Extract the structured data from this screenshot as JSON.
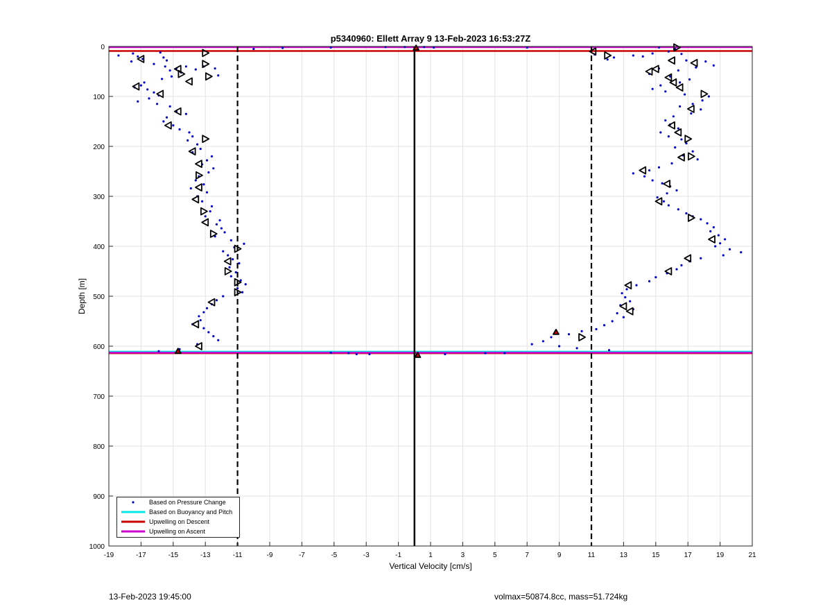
{
  "chart_data": {
    "type": "scatter",
    "title": "p5340960: Ellett Array 9 13-Feb-2023 16:53:27Z",
    "xlabel": "Vertical Velocity [cm/s]",
    "ylabel": "Depth [m]",
    "xlim": [
      -19,
      21
    ],
    "ylim": [
      0,
      1000
    ],
    "y_reversed": true,
    "grid": true,
    "xticks": [
      -19,
      -17,
      -15,
      -13,
      -11,
      -9,
      -7,
      -5,
      -3,
      -1,
      1,
      3,
      5,
      7,
      9,
      11,
      13,
      15,
      17,
      19,
      21
    ],
    "yticks": [
      0,
      100,
      200,
      300,
      400,
      500,
      600,
      700,
      800,
      900,
      1000
    ],
    "legend_position": "bottom-left",
    "legend": [
      {
        "label": "Based on Pressure Change",
        "color": "#0000cc",
        "kind": "dot"
      },
      {
        "label": "Based on Buoyancy and Pitch",
        "color": "#00e5e5",
        "kind": "line"
      },
      {
        "label": "Upwelling on Descent",
        "color": "#cc0000",
        "kind": "line"
      },
      {
        "label": "Upwelling on Ascent",
        "color": "#cc00cc",
        "kind": "line"
      }
    ],
    "reference_lines": [
      {
        "x": 0,
        "style": "solid",
        "color": "#000000"
      },
      {
        "x": -11,
        "style": "dashed",
        "color": "#000000"
      },
      {
        "x": 11,
        "style": "dashed",
        "color": "#000000"
      }
    ],
    "series": [
      {
        "name": "Based on Pressure Change",
        "descent_points": [
          [
            -18.4,
            18
          ],
          [
            -17.5,
            14
          ],
          [
            -17.2,
            20
          ],
          [
            -16.9,
            25
          ],
          [
            -17.6,
            30
          ],
          [
            -15.8,
            12
          ],
          [
            -15.6,
            22
          ],
          [
            -15.4,
            28
          ],
          [
            -16.2,
            35
          ],
          [
            -15.5,
            40
          ],
          [
            -15.2,
            48
          ],
          [
            -14.8,
            44
          ],
          [
            -14.2,
            40
          ],
          [
            -13.6,
            46
          ],
          [
            -13.1,
            40
          ],
          [
            -12.4,
            44
          ],
          [
            -12.2,
            58
          ],
          [
            -14.5,
            52
          ],
          [
            -15.1,
            60
          ],
          [
            -15.7,
            65
          ],
          [
            -16.8,
            72
          ],
          [
            -17.0,
            78
          ],
          [
            -17.4,
            82
          ],
          [
            -16.6,
            86
          ],
          [
            -16.2,
            92
          ],
          [
            -15.9,
            98
          ],
          [
            -16.5,
            104
          ],
          [
            -17.2,
            110
          ],
          [
            -16.0,
            115
          ],
          [
            -15.2,
            120
          ],
          [
            -14.8,
            130
          ],
          [
            -14.2,
            135
          ],
          [
            -15.4,
            142
          ],
          [
            -15.6,
            150
          ],
          [
            -15.0,
            158
          ],
          [
            -14.6,
            166
          ],
          [
            -14.0,
            172
          ],
          [
            -13.8,
            180
          ],
          [
            -14.1,
            188
          ],
          [
            -13.5,
            196
          ],
          [
            -13.3,
            205
          ],
          [
            -13.8,
            212
          ],
          [
            -12.6,
            220
          ],
          [
            -12.9,
            228
          ],
          [
            -13.2,
            236
          ],
          [
            -12.5,
            244
          ],
          [
            -12.8,
            252
          ],
          [
            -13.4,
            260
          ],
          [
            -13.6,
            268
          ],
          [
            -13.1,
            276
          ],
          [
            -13.9,
            284
          ],
          [
            -12.9,
            292
          ],
          [
            -13.5,
            300
          ],
          [
            -13.2,
            310
          ],
          [
            -12.6,
            320
          ],
          [
            -12.7,
            330
          ],
          [
            -13.0,
            340
          ],
          [
            -12.1,
            348
          ],
          [
            -12.3,
            356
          ],
          [
            -12.0,
            364
          ],
          [
            -11.8,
            372
          ],
          [
            -12.4,
            380
          ],
          [
            -11.4,
            388
          ],
          [
            -10.6,
            395
          ],
          [
            -11.2,
            402
          ],
          [
            -11.9,
            410
          ],
          [
            -11.6,
            418
          ],
          [
            -11.3,
            426
          ],
          [
            -10.9,
            434
          ],
          [
            -11.5,
            442
          ],
          [
            -11.1,
            452
          ],
          [
            -11.4,
            460
          ],
          [
            -10.8,
            468
          ],
          [
            -10.5,
            476
          ],
          [
            -11.0,
            484
          ],
          [
            -10.7,
            492
          ],
          [
            -11.9,
            500
          ],
          [
            -12.3,
            508
          ],
          [
            -12.6,
            516
          ],
          [
            -12.9,
            524
          ],
          [
            -13.1,
            532
          ],
          [
            -13.4,
            540
          ],
          [
            -13.3,
            548
          ],
          [
            -13.8,
            556
          ],
          [
            -13.1,
            564
          ],
          [
            -12.8,
            572
          ],
          [
            -12.5,
            580
          ],
          [
            -12.2,
            588
          ],
          [
            -13.5,
            596
          ],
          [
            -14.6,
            606
          ],
          [
            -15.9,
            610
          ],
          [
            -8.2,
            3
          ],
          [
            -10.0,
            5
          ],
          [
            -5.2,
            2
          ],
          [
            -1.8,
            1
          ],
          [
            -0.6,
            1
          ]
        ],
        "ascent_points": [
          [
            15.2,
            2
          ],
          [
            16.2,
            5
          ],
          [
            15.8,
            10
          ],
          [
            16.6,
            15
          ],
          [
            14.8,
            14
          ],
          [
            14.2,
            20
          ],
          [
            13.6,
            18
          ],
          [
            12.4,
            22
          ],
          [
            12.0,
            26
          ],
          [
            11.2,
            16
          ],
          [
            16.9,
            28
          ],
          [
            18.1,
            30
          ],
          [
            18.6,
            38
          ],
          [
            17.5,
            42
          ],
          [
            16.4,
            48
          ],
          [
            15.2,
            44
          ],
          [
            14.6,
            55
          ],
          [
            15.9,
            60
          ],
          [
            17.1,
            66
          ],
          [
            16.5,
            72
          ],
          [
            15.3,
            78
          ],
          [
            14.8,
            85
          ],
          [
            15.6,
            90
          ],
          [
            16.8,
            96
          ],
          [
            18.3,
            100
          ],
          [
            17.9,
            108
          ],
          [
            17.3,
            115
          ],
          [
            16.5,
            120
          ],
          [
            17.8,
            126
          ],
          [
            17.2,
            134
          ],
          [
            16.1,
            140
          ],
          [
            15.6,
            148
          ],
          [
            15.9,
            156
          ],
          [
            16.4,
            164
          ],
          [
            15.3,
            172
          ],
          [
            15.8,
            180
          ],
          [
            16.6,
            186
          ],
          [
            16.9,
            194
          ],
          [
            16.2,
            202
          ],
          [
            17.3,
            210
          ],
          [
            16.7,
            218
          ],
          [
            17.6,
            226
          ],
          [
            16.0,
            234
          ],
          [
            15.2,
            242
          ],
          [
            14.6,
            248
          ],
          [
            13.6,
            254
          ],
          [
            14.3,
            260
          ],
          [
            14.8,
            268
          ],
          [
            15.4,
            274
          ],
          [
            15.9,
            280
          ],
          [
            16.3,
            288
          ],
          [
            15.7,
            294
          ],
          [
            15.1,
            302
          ],
          [
            15.5,
            310
          ],
          [
            15.8,
            318
          ],
          [
            16.4,
            326
          ],
          [
            16.9,
            334
          ],
          [
            17.3,
            340
          ],
          [
            17.8,
            346
          ],
          [
            18.2,
            354
          ],
          [
            18.6,
            362
          ],
          [
            18.4,
            370
          ],
          [
            18.9,
            378
          ],
          [
            19.3,
            386
          ],
          [
            19.0,
            394
          ],
          [
            18.7,
            400
          ],
          [
            19.6,
            406
          ],
          [
            20.3,
            412
          ],
          [
            19.2,
            418
          ],
          [
            17.8,
            424
          ],
          [
            17.1,
            430
          ],
          [
            16.6,
            438
          ],
          [
            16.3,
            446
          ],
          [
            15.7,
            454
          ],
          [
            15.0,
            462
          ],
          [
            14.6,
            470
          ],
          [
            13.8,
            478
          ],
          [
            13.2,
            486
          ],
          [
            12.9,
            494
          ],
          [
            13.1,
            502
          ],
          [
            13.4,
            510
          ],
          [
            12.8,
            518
          ],
          [
            13.6,
            526
          ],
          [
            12.6,
            534
          ],
          [
            13.0,
            542
          ],
          [
            12.3,
            550
          ],
          [
            11.8,
            558
          ],
          [
            11.3,
            566
          ],
          [
            10.4,
            570
          ],
          [
            9.6,
            576
          ],
          [
            8.5,
            582
          ],
          [
            8.0,
            590
          ],
          [
            7.3,
            596
          ],
          [
            9.0,
            600
          ],
          [
            10.1,
            604
          ],
          [
            12.1,
            608
          ],
          [
            1.2,
            2
          ],
          [
            0.6,
            1
          ],
          [
            7.0,
            2
          ],
          [
            4.4,
            614
          ],
          [
            5.6,
            614
          ],
          [
            1.9,
            616
          ],
          [
            -3.6,
            616
          ],
          [
            -2.8,
            616
          ],
          [
            -4.1,
            614
          ],
          [
            -5.2,
            613
          ]
        ]
      },
      {
        "name": "Based on Buoyancy and Pitch",
        "lines": [
          {
            "depth": 611
          }
        ]
      },
      {
        "name": "Upwelling on Descent",
        "lines": [
          {
            "depth": 9
          },
          {
            "depth": 614
          }
        ]
      },
      {
        "name": "Upwelling on Ascent",
        "lines": [
          {
            "depth": 0
          },
          {
            "depth": 613
          }
        ]
      }
    ],
    "triangle_markers": [
      [
        -17.0,
        25,
        "left"
      ],
      [
        -13.0,
        13,
        "right"
      ],
      [
        -13.0,
        35,
        "right"
      ],
      [
        -14.7,
        45,
        "left"
      ],
      [
        -14.5,
        55,
        "right"
      ],
      [
        -12.8,
        60,
        "right"
      ],
      [
        -14.0,
        70,
        "left"
      ],
      [
        -17.3,
        80,
        "left"
      ],
      [
        -15.8,
        95,
        "left"
      ],
      [
        -14.7,
        130,
        "left"
      ],
      [
        -15.3,
        158,
        "left"
      ],
      [
        -13.0,
        185,
        "right"
      ],
      [
        -13.8,
        210,
        "left"
      ],
      [
        -13.4,
        235,
        "left"
      ],
      [
        -13.4,
        258,
        "right"
      ],
      [
        -13.4,
        282,
        "left"
      ],
      [
        -13.6,
        306,
        "left"
      ],
      [
        -13.1,
        330,
        "right"
      ],
      [
        -13.0,
        352,
        "left"
      ],
      [
        -12.5,
        375,
        "right"
      ],
      [
        -11.0,
        405,
        "right"
      ],
      [
        -11.6,
        430,
        "left"
      ],
      [
        -11.6,
        450,
        "right"
      ],
      [
        -11.0,
        472,
        "right"
      ],
      [
        -11.0,
        492,
        "right"
      ],
      [
        -12.6,
        512,
        "left"
      ],
      [
        -13.6,
        556,
        "left"
      ],
      [
        -13.4,
        600,
        "left"
      ],
      [
        -14.7,
        610,
        "up"
      ],
      [
        16.3,
        2,
        "right"
      ],
      [
        11.1,
        10,
        "left"
      ],
      [
        12.0,
        18,
        "right"
      ],
      [
        16.0,
        28,
        "left"
      ],
      [
        17.4,
        33,
        "left"
      ],
      [
        15.0,
        45,
        "left"
      ],
      [
        14.6,
        50,
        "left"
      ],
      [
        15.8,
        62,
        "left"
      ],
      [
        16.1,
        72,
        "left"
      ],
      [
        16.5,
        82,
        "left"
      ],
      [
        18.0,
        95,
        "right"
      ],
      [
        17.2,
        125,
        "left"
      ],
      [
        16.0,
        158,
        "left"
      ],
      [
        16.4,
        172,
        "left"
      ],
      [
        17.0,
        185,
        "right"
      ],
      [
        16.6,
        222,
        "left"
      ],
      [
        17.2,
        220,
        "right"
      ],
      [
        14.2,
        248,
        "left"
      ],
      [
        15.7,
        275,
        "left"
      ],
      [
        15.2,
        310,
        "left"
      ],
      [
        17.2,
        343,
        "right"
      ],
      [
        18.5,
        386,
        "left"
      ],
      [
        17.0,
        424,
        "left"
      ],
      [
        15.8,
        450,
        "left"
      ],
      [
        13.3,
        478,
        "left"
      ],
      [
        13.0,
        520,
        "left"
      ],
      [
        13.4,
        530,
        "left"
      ],
      [
        10.4,
        582,
        "right"
      ],
      [
        8.8,
        572,
        "up"
      ],
      [
        0.1,
        3,
        "up"
      ],
      [
        0.2,
        618,
        "up"
      ]
    ]
  },
  "footer": {
    "timestamp": "13-Feb-2023 19:45:00",
    "params": "volmax=50874.8cc, mass=51.724kg"
  }
}
